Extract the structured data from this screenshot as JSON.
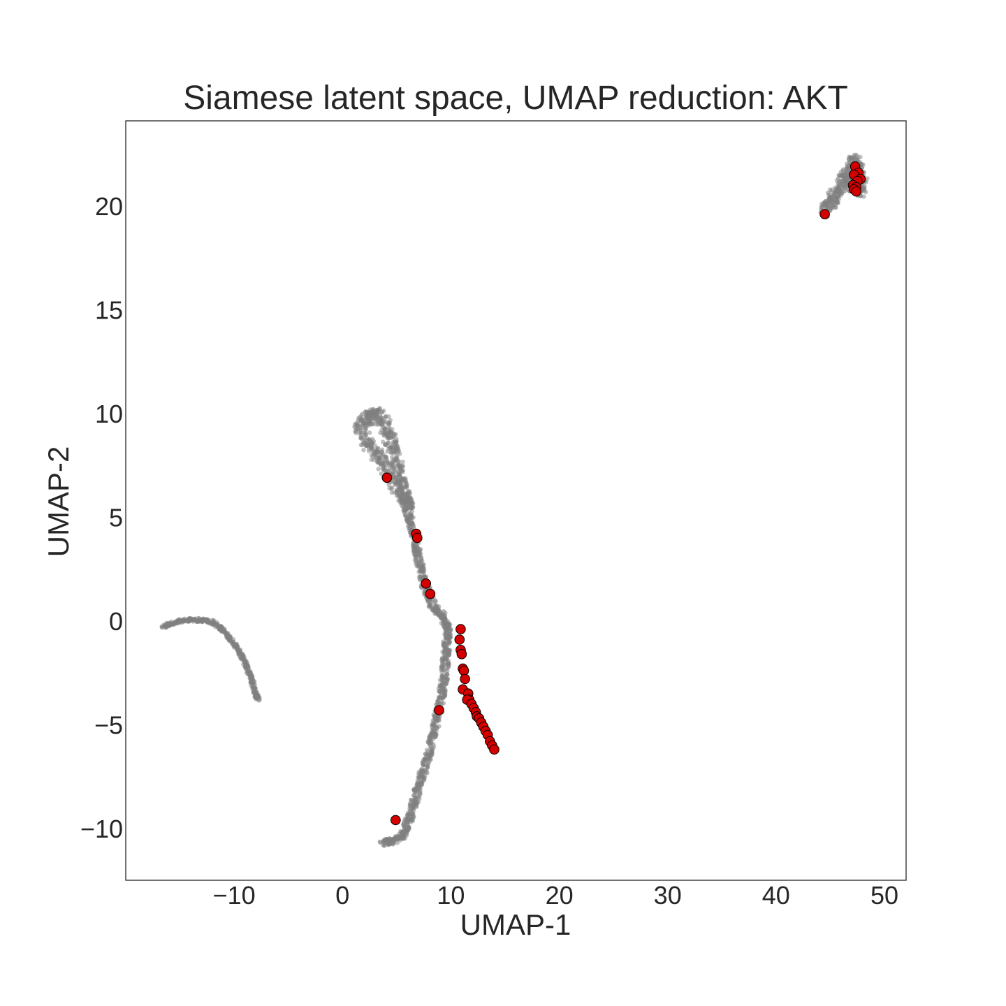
{
  "chart_data": {
    "type": "scatter",
    "title": "Siamese latent space, UMAP reduction: AKT",
    "xlabel": "UMAP-1",
    "ylabel": "UMAP-2",
    "xlim": [
      -20,
      52
    ],
    "ylim": [
      -12.5,
      24.1
    ],
    "xticks": [
      -10,
      0,
      10,
      20,
      30,
      40,
      50
    ],
    "yticks": [
      -10,
      -5,
      0,
      5,
      10,
      15,
      20
    ],
    "xtick_labels": [
      "−10",
      "0",
      "10",
      "20",
      "30",
      "40",
      "50"
    ],
    "ytick_labels": [
      "−10",
      "−5",
      "0",
      "5",
      "10",
      "15",
      "20"
    ],
    "grid": false,
    "background_colour": "#dddddd",
    "highlight_colour": "#d40000",
    "series": [
      {
        "role": "background",
        "color": "#808080",
        "clusters": [
          {
            "shape": "arc",
            "points": [
              [
                -16.6,
                -0.3
              ],
              [
                -15.4,
                -0.05
              ],
              [
                -14.2,
                0.05
              ],
              [
                -13.0,
                0.05
              ],
              [
                -12.0,
                -0.05
              ],
              [
                -11.1,
                -0.4
              ],
              [
                -10.3,
                -0.9
              ],
              [
                -9.5,
                -1.5
              ],
              [
                -8.9,
                -2.1
              ],
              [
                -8.4,
                -2.8
              ],
              [
                -8.0,
                -3.5
              ],
              [
                -7.8,
                -3.8
              ]
            ]
          },
          {
            "shape": "blob",
            "points": [
              [
                1.6,
                9.2
              ],
              [
                2.0,
                9.6
              ],
              [
                2.6,
                9.9
              ],
              [
                3.2,
                10.0
              ],
              [
                3.8,
                9.6
              ],
              [
                4.2,
                9.0
              ],
              [
                4.6,
                8.4
              ],
              [
                5.0,
                7.6
              ],
              [
                5.4,
                6.8
              ],
              [
                5.8,
                6.0
              ],
              [
                6.1,
                5.4
              ],
              [
                5.6,
                5.9
              ],
              [
                4.9,
                6.6
              ],
              [
                4.1,
                7.3
              ],
              [
                3.3,
                7.9
              ],
              [
                2.6,
                8.4
              ],
              [
                2.0,
                8.8
              ]
            ]
          },
          {
            "shape": "band",
            "points": [
              [
                6.0,
                5.4
              ],
              [
                6.3,
                4.7
              ],
              [
                6.6,
                4.0
              ],
              [
                6.9,
                3.3
              ],
              [
                7.2,
                2.6
              ],
              [
                7.5,
                1.9
              ],
              [
                7.9,
                1.2
              ],
              [
                8.5,
                0.6
              ],
              [
                9.1,
                0.3
              ],
              [
                9.6,
                -0.1
              ],
              [
                9.7,
                -0.6
              ],
              [
                9.6,
                -1.2
              ],
              [
                9.5,
                -1.9
              ],
              [
                9.4,
                -2.6
              ],
              [
                9.2,
                -3.4
              ],
              [
                8.9,
                -4.2
              ],
              [
                8.6,
                -5.0
              ],
              [
                8.2,
                -5.8
              ],
              [
                7.8,
                -6.7
              ],
              [
                7.4,
                -7.4
              ],
              [
                7.0,
                -8.1
              ],
              [
                6.6,
                -8.8
              ],
              [
                6.2,
                -9.5
              ],
              [
                5.8,
                -10.1
              ],
              [
                5.2,
                -10.5
              ],
              [
                4.4,
                -10.6
              ],
              [
                3.8,
                -10.7
              ]
            ]
          },
          {
            "shape": "blob",
            "points": [
              [
                44.4,
                19.7
              ],
              [
                44.9,
                20.1
              ],
              [
                45.4,
                20.5
              ],
              [
                45.9,
                20.9
              ],
              [
                46.4,
                21.3
              ],
              [
                46.8,
                21.7
              ],
              [
                47.2,
                22.2
              ],
              [
                47.5,
                21.8
              ],
              [
                47.9,
                21.2
              ],
              [
                47.8,
                20.7
              ],
              [
                47.3,
                20.8
              ],
              [
                46.9,
                21.1
              ]
            ]
          }
        ]
      },
      {
        "role": "highlight",
        "color": "#d40000",
        "points": [
          [
            4.1,
            6.9
          ],
          [
            6.8,
            4.2
          ],
          [
            6.9,
            4.0
          ],
          [
            7.7,
            1.8
          ],
          [
            8.1,
            1.3
          ],
          [
            8.9,
            -4.3
          ],
          [
            4.9,
            -9.6
          ],
          [
            10.9,
            -0.4
          ],
          [
            10.8,
            -0.9
          ],
          [
            10.9,
            -1.4
          ],
          [
            11.0,
            -1.6
          ],
          [
            11.1,
            -2.3
          ],
          [
            11.2,
            -2.4
          ],
          [
            11.3,
            -2.8
          ],
          [
            11.1,
            -3.3
          ],
          [
            11.6,
            -3.5
          ],
          [
            11.7,
            -3.8
          ],
          [
            11.5,
            -3.8
          ],
          [
            11.9,
            -4.0
          ],
          [
            12.1,
            -4.2
          ],
          [
            12.3,
            -4.4
          ],
          [
            12.4,
            -4.6
          ],
          [
            12.6,
            -4.7
          ],
          [
            12.8,
            -4.9
          ],
          [
            13.0,
            -5.1
          ],
          [
            13.2,
            -5.3
          ],
          [
            13.4,
            -5.5
          ],
          [
            13.6,
            -5.8
          ],
          [
            13.8,
            -6.0
          ],
          [
            14.0,
            -6.2
          ],
          [
            44.5,
            19.6
          ],
          [
            47.3,
            21.9
          ],
          [
            47.6,
            21.6
          ],
          [
            47.2,
            21.5
          ],
          [
            47.8,
            21.3
          ],
          [
            47.5,
            21.2
          ],
          [
            47.1,
            21.0
          ],
          [
            47.4,
            20.9
          ],
          [
            47.2,
            20.8
          ],
          [
            47.4,
            20.7
          ]
        ]
      }
    ]
  }
}
